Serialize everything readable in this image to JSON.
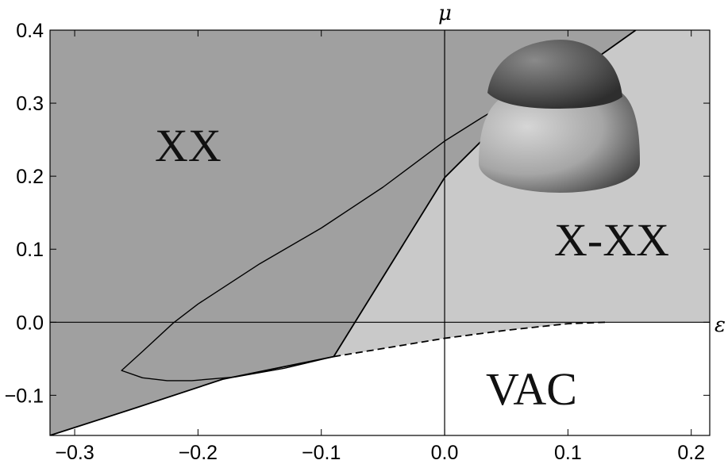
{
  "chart_data": {
    "type": "area",
    "title": "",
    "xlabel": "ε",
    "ylabel": "μ",
    "xlim": [
      -0.32,
      0.215
    ],
    "ylim": [
      -0.155,
      0.4
    ],
    "xticks": [
      -0.3,
      -0.2,
      -0.1,
      0.0,
      0.1,
      0.2
    ],
    "xtick_labels": [
      "−0.3",
      "−0.2",
      "−0.1",
      "0.0",
      "0.1",
      "0.2"
    ],
    "yticks": [
      -0.1,
      0.0,
      0.1,
      0.2,
      0.3,
      0.4
    ],
    "ytick_labels": [
      "−0.1",
      "0.0",
      "0.1",
      "0.2",
      "0.3",
      "0.4"
    ],
    "grid": false,
    "regions": [
      {
        "label": "XX",
        "color": "#a0a0a0"
      },
      {
        "label": "X-XX",
        "color": "#c9c9c9"
      },
      {
        "label": "VAC",
        "color": "#ffffff"
      }
    ],
    "series": [
      {
        "style": "solid",
        "points": [
          [
            -0.32,
            -0.155
          ],
          [
            -0.25,
            -0.117
          ],
          [
            -0.18,
            -0.078
          ],
          [
            -0.09,
            -0.047
          ],
          [
            0.0,
            0.198
          ],
          [
            0.05,
            0.282
          ],
          [
            0.1,
            0.334
          ],
          [
            0.155,
            0.4
          ]
        ]
      },
      {
        "style": "solid",
        "points": [
          [
            -0.09,
            -0.047
          ],
          [
            -0.13,
            -0.063
          ],
          [
            -0.17,
            -0.075
          ],
          [
            -0.205,
            -0.08
          ],
          [
            -0.225,
            -0.08
          ],
          [
            -0.245,
            -0.076
          ],
          [
            -0.262,
            -0.066
          ],
          [
            -0.245,
            -0.04
          ],
          [
            -0.22,
            -0.001
          ],
          [
            -0.2,
            0.025
          ],
          [
            -0.15,
            0.08
          ],
          [
            -0.1,
            0.129
          ],
          [
            -0.05,
            0.185
          ],
          [
            0.0,
            0.248
          ],
          [
            0.03,
            0.28
          ],
          [
            0.06,
            0.31
          ]
        ]
      },
      {
        "style": "dashed",
        "points": [
          [
            -0.09,
            -0.047
          ],
          [
            -0.05,
            -0.036
          ],
          [
            0.0,
            -0.022
          ],
          [
            0.05,
            -0.011
          ],
          [
            0.1,
            -0.002
          ],
          [
            0.13,
            0.0
          ]
        ]
      }
    ],
    "inset": {
      "kind": "3d-dome",
      "colors": {
        "cap": "#5a5a5a",
        "base": "#a6a6a6"
      }
    }
  }
}
